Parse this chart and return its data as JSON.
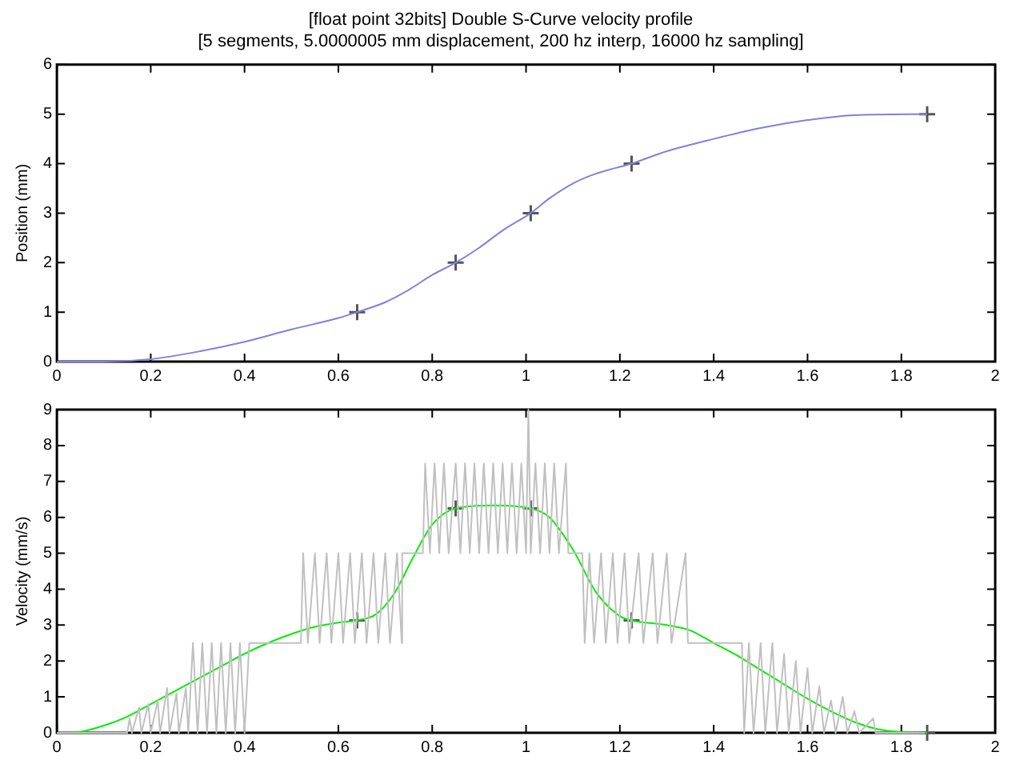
{
  "chart_data": [
    {
      "type": "line",
      "title": "[float point 32bits] Double S-Curve velocity profile",
      "subtitle": "[5 segments, 5.0000005 mm displacement, 200 hz interp, 16000 hz sampling]",
      "ylabel": "Position (mm)",
      "xlim": [
        0,
        2
      ],
      "xticks": [
        0,
        0.2,
        0.4,
        0.6,
        0.8,
        1,
        1.2,
        1.4,
        1.6,
        1.8,
        2
      ],
      "ylim": [
        0,
        6
      ],
      "yticks": [
        0,
        1,
        2,
        3,
        4,
        5,
        6
      ],
      "grid": false,
      "legend": false,
      "series": [
        {
          "color": "#8080e0",
          "marker": "none",
          "x": [
            0,
            0.1,
            0.2,
            0.3,
            0.4,
            0.5,
            0.6,
            0.64,
            0.7,
            0.75,
            0.8,
            0.85,
            0.9,
            0.95,
            1.01,
            1.05,
            1.1,
            1.15,
            1.225,
            1.3,
            1.4,
            1.5,
            1.6,
            1.7,
            1.855
          ],
          "values": [
            0,
            0,
            0.05,
            0.2,
            0.4,
            0.65,
            0.88,
            1,
            1.2,
            1.45,
            1.75,
            2,
            2.3,
            2.65,
            3,
            3.3,
            3.6,
            3.8,
            4,
            4.25,
            4.5,
            4.72,
            4.88,
            4.98,
            5
          ]
        },
        {
          "type": "scatter",
          "color": "#555555",
          "marker": "cross",
          "x": [
            0.64,
            0.85,
            1.01,
            1.225,
            1.855
          ],
          "values": [
            1,
            2,
            3,
            4,
            5
          ]
        }
      ]
    },
    {
      "type": "line",
      "ylabel": "Velocity (mm/s)",
      "xlim": [
        0,
        2
      ],
      "xticks": [
        0,
        0.2,
        0.4,
        0.6,
        0.8,
        1,
        1.2,
        1.4,
        1.6,
        1.8,
        2
      ],
      "ylim": [
        0,
        9
      ],
      "yticks": [
        0,
        1,
        2,
        3,
        4,
        5,
        6,
        7,
        8,
        9
      ],
      "grid": false,
      "legend": false,
      "series": [
        {
          "color": "#c0c0c0",
          "marker": "none",
          "x": [
            0,
            0.15,
            0.155,
            0.16,
            0.175,
            0.18,
            0.195,
            0.2,
            0.215,
            0.22,
            0.235,
            0.24,
            0.255,
            0.26,
            0.275,
            0.28,
            0.29,
            0.3,
            0.31,
            0.32,
            0.33,
            0.34,
            0.35,
            0.36,
            0.37,
            0.38,
            0.39,
            0.4,
            0.41,
            0.52,
            0.525,
            0.535,
            0.55,
            0.56,
            0.575,
            0.585,
            0.6,
            0.61,
            0.625,
            0.635,
            0.65,
            0.66,
            0.675,
            0.685,
            0.7,
            0.71,
            0.725,
            0.735,
            0.736,
            0.78,
            0.785,
            0.795,
            0.805,
            0.815,
            0.825,
            0.835,
            0.85,
            0.86,
            0.87,
            0.88,
            0.89,
            0.9,
            0.91,
            0.92,
            0.93,
            0.94,
            0.95,
            0.96,
            0.97,
            0.98,
            0.99,
            1.0,
            1.005,
            1.01,
            1.02,
            1.03,
            1.04,
            1.05,
            1.06,
            1.07,
            1.085,
            1.09,
            1.12,
            1.125,
            1.135,
            1.145,
            1.16,
            1.17,
            1.185,
            1.195,
            1.21,
            1.22,
            1.24,
            1.25,
            1.27,
            1.28,
            1.3,
            1.31,
            1.34,
            1.345,
            1.46,
            1.465,
            1.475,
            1.485,
            1.5,
            1.51,
            1.525,
            1.535,
            1.55,
            1.56,
            1.575,
            1.585,
            1.6,
            1.61,
            1.625,
            1.635,
            1.65,
            1.66,
            1.675,
            1.685,
            1.7,
            1.71,
            1.74,
            1.745,
            1.85
          ],
          "values": [
            0,
            0,
            0.4,
            0,
            0.7,
            0,
            0.8,
            0,
            0.9,
            0,
            1.25,
            0,
            1.1,
            0,
            1.25,
            0,
            2.5,
            0,
            2.5,
            0,
            2.5,
            0,
            2.5,
            0,
            2.5,
            0,
            2.5,
            0,
            2.5,
            2.5,
            5,
            2.5,
            5,
            2.5,
            5,
            2.5,
            5,
            2.5,
            5,
            2.5,
            5,
            2.5,
            5,
            2.5,
            5,
            2.5,
            5,
            2.5,
            5,
            5,
            7.5,
            5,
            7.5,
            5,
            7.5,
            5,
            7.5,
            5,
            7.5,
            5,
            7.5,
            5,
            7.5,
            5,
            7.5,
            5,
            7.5,
            5,
            7.5,
            5,
            7.5,
            5,
            9,
            5,
            7.5,
            5,
            7.5,
            5,
            7.5,
            5,
            7.5,
            5,
            5,
            2.5,
            5,
            2.5,
            5,
            2.5,
            5,
            2.5,
            5,
            2.5,
            5,
            2.5,
            5,
            2.5,
            5,
            2.5,
            5,
            2.5,
            2.5,
            0,
            2.5,
            0,
            2.5,
            0,
            2.5,
            0,
            2.2,
            0,
            2,
            0,
            1.8,
            0,
            1.3,
            0,
            0.9,
            0,
            1,
            0,
            0.6,
            0,
            0.4,
            0,
            0
          ]
        },
        {
          "color": "#00ee00",
          "marker": "none",
          "x": [
            0,
            0.05,
            0.1,
            0.15,
            0.2,
            0.25,
            0.3,
            0.35,
            0.4,
            0.45,
            0.5,
            0.55,
            0.6,
            0.64,
            0.68,
            0.72,
            0.76,
            0.8,
            0.85,
            0.93,
            1.01,
            1.05,
            1.1,
            1.15,
            1.2,
            1.225,
            1.3,
            1.35,
            1.4,
            1.45,
            1.5,
            1.55,
            1.6,
            1.65,
            1.7,
            1.75,
            1.8,
            1.855
          ],
          "values": [
            0,
            0.03,
            0.2,
            0.45,
            0.8,
            1.15,
            1.5,
            1.85,
            2.2,
            2.5,
            2.75,
            2.95,
            3.07,
            3.13,
            3.3,
            3.9,
            4.9,
            5.8,
            6.25,
            6.33,
            6.25,
            6,
            5.1,
            3.9,
            3.25,
            3.13,
            3,
            2.85,
            2.5,
            2.15,
            1.75,
            1.35,
            0.95,
            0.6,
            0.3,
            0.1,
            0.02,
            0
          ]
        },
        {
          "type": "scatter",
          "color": "#555555",
          "marker": "cross",
          "x": [
            0.64,
            0.85,
            1.01,
            1.225,
            1.855
          ],
          "values": [
            3.13,
            6.25,
            6.25,
            3.13,
            0
          ]
        }
      ]
    }
  ]
}
